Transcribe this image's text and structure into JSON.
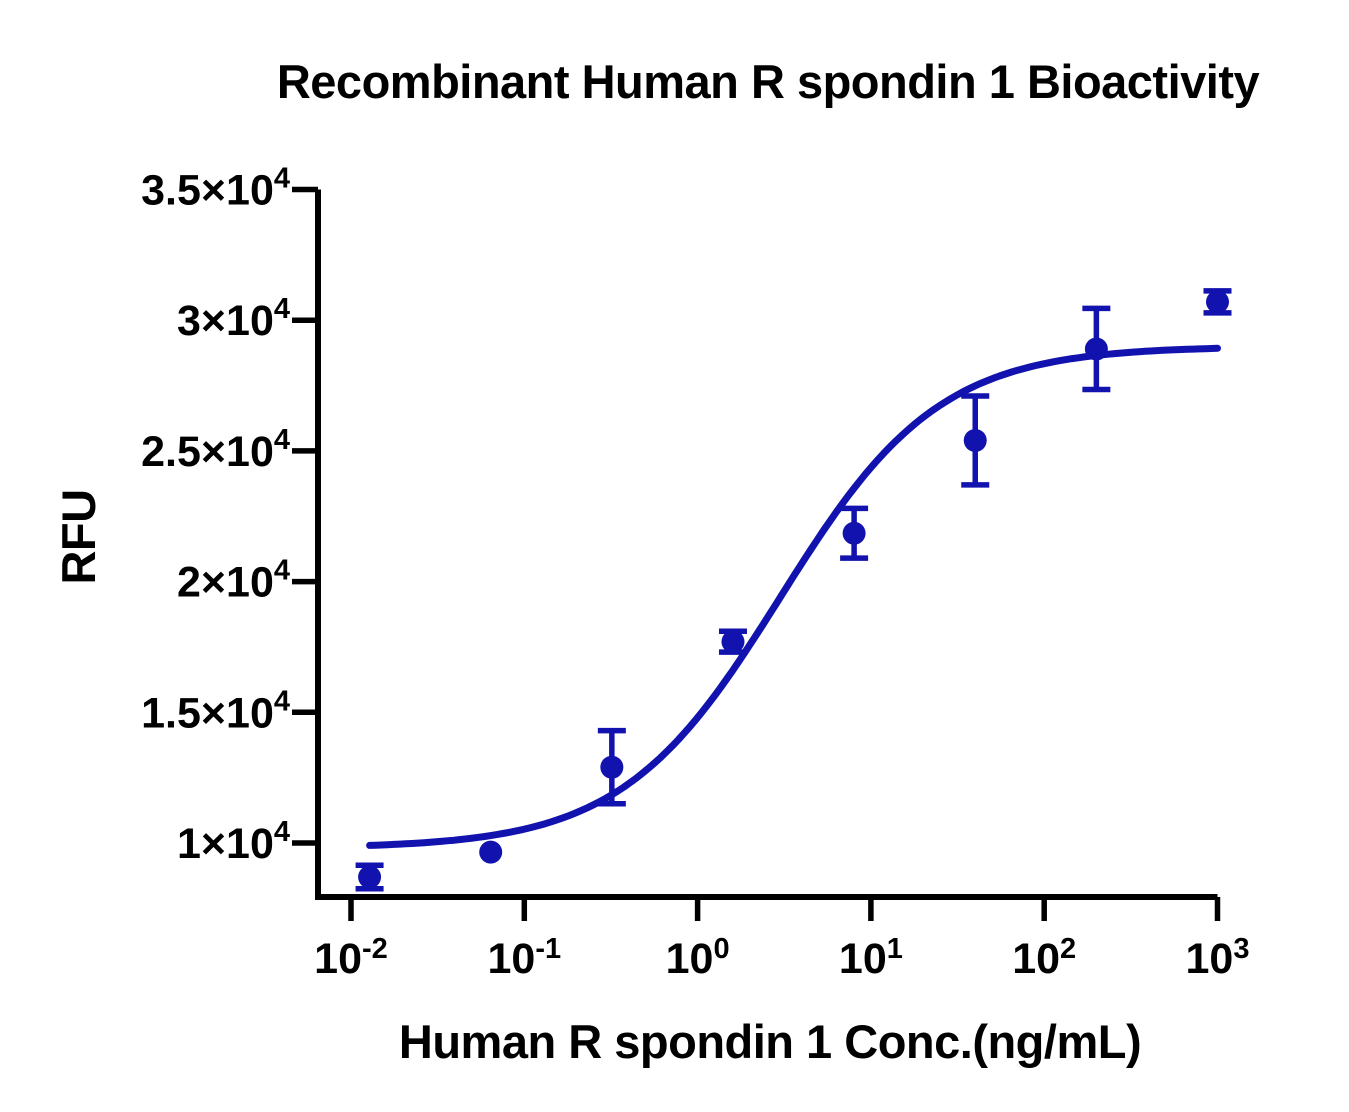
{
  "chart_data": {
    "type": "scatter",
    "title": "Recombinant Human R spondin 1 Bioactivity",
    "xlabel": "Human R spondin 1 Conc.(ng/mL)",
    "ylabel": "RFU",
    "x_scale": "log10",
    "grid": false,
    "legend": null,
    "xlim_log": [
      -2.19,
      3.0
    ],
    "ylim": [
      7900,
      35000
    ],
    "x_ticks": [
      {
        "mantissa": "10",
        "exponent": "-2",
        "value": 0.01
      },
      {
        "mantissa": "10",
        "exponent": "-1",
        "value": 0.1
      },
      {
        "mantissa": "10",
        "exponent": "0",
        "value": 1
      },
      {
        "mantissa": "10",
        "exponent": "1",
        "value": 10
      },
      {
        "mantissa": "10",
        "exponent": "2",
        "value": 100
      },
      {
        "mantissa": "10",
        "exponent": "3",
        "value": 1000
      }
    ],
    "y_ticks": [
      {
        "mantissa": "1×10",
        "exponent": "4",
        "value": 10000
      },
      {
        "mantissa": "1.5×10",
        "exponent": "4",
        "value": 15000
      },
      {
        "mantissa": "2×10",
        "exponent": "4",
        "value": 20000
      },
      {
        "mantissa": "2.5×10",
        "exponent": "4",
        "value": 25000
      },
      {
        "mantissa": "3×10",
        "exponent": "4",
        "value": 30000
      },
      {
        "mantissa": "3.5×10",
        "exponent": "4",
        "value": 35000
      }
    ],
    "series": [
      {
        "name": "Human R spondin 1",
        "color": "#1212ae",
        "marker": "circle",
        "points": [
          {
            "conc_ng_ml": 0.0128,
            "rfu": 8700,
            "err": 450
          },
          {
            "conc_ng_ml": 0.064,
            "rfu": 9650,
            "err": 120
          },
          {
            "conc_ng_ml": 0.32,
            "rfu": 12900,
            "err": 1400
          },
          {
            "conc_ng_ml": 1.6,
            "rfu": 17700,
            "err": 400
          },
          {
            "conc_ng_ml": 8,
            "rfu": 21850,
            "err": 950
          },
          {
            "conc_ng_ml": 40,
            "rfu": 25400,
            "err": 1700
          },
          {
            "conc_ng_ml": 200,
            "rfu": 28900,
            "err": 1550
          },
          {
            "conc_ng_ml": 1000,
            "rfu": 30700,
            "err": 420
          }
        ]
      }
    ],
    "fit_curve": {
      "model": "4PL",
      "bottom": 9800,
      "top": 29000,
      "ec50_ng_ml": 3.0,
      "hill": 0.95,
      "x_start": 0.0128,
      "x_end": 1000,
      "color": "#1212ae"
    },
    "axis_color": "#000000"
  }
}
